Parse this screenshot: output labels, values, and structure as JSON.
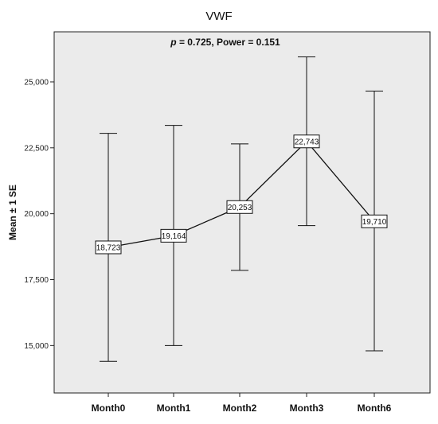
{
  "chart_data": {
    "type": "line",
    "title": "VWF",
    "annotation_p_label": "p",
    "annotation_rest": " = 0.725, Power = 0.151",
    "ylabel": "Mean ± 1 SE",
    "xlabel": "",
    "categories": [
      "Month0",
      "Month1",
      "Month2",
      "Month3",
      "Month6"
    ],
    "values": [
      18723,
      19164,
      20253,
      22743,
      19710
    ],
    "value_labels": [
      "18,723",
      "19,164",
      "20,253",
      "22,743",
      "19,710"
    ],
    "error_upper": [
      23050,
      23350,
      22650,
      25950,
      24650
    ],
    "error_lower": [
      14400,
      15000,
      17850,
      19550,
      14800
    ],
    "ylim": [
      13200,
      26900
    ],
    "yticks": [
      15000,
      17500,
      20000,
      22500,
      25000
    ],
    "ytick_labels": [
      "15,000",
      "17,500",
      "20,000",
      "22,500",
      "25,000"
    ],
    "grid": false,
    "plot_background": "#ebebeb",
    "line_color": "#111111"
  }
}
